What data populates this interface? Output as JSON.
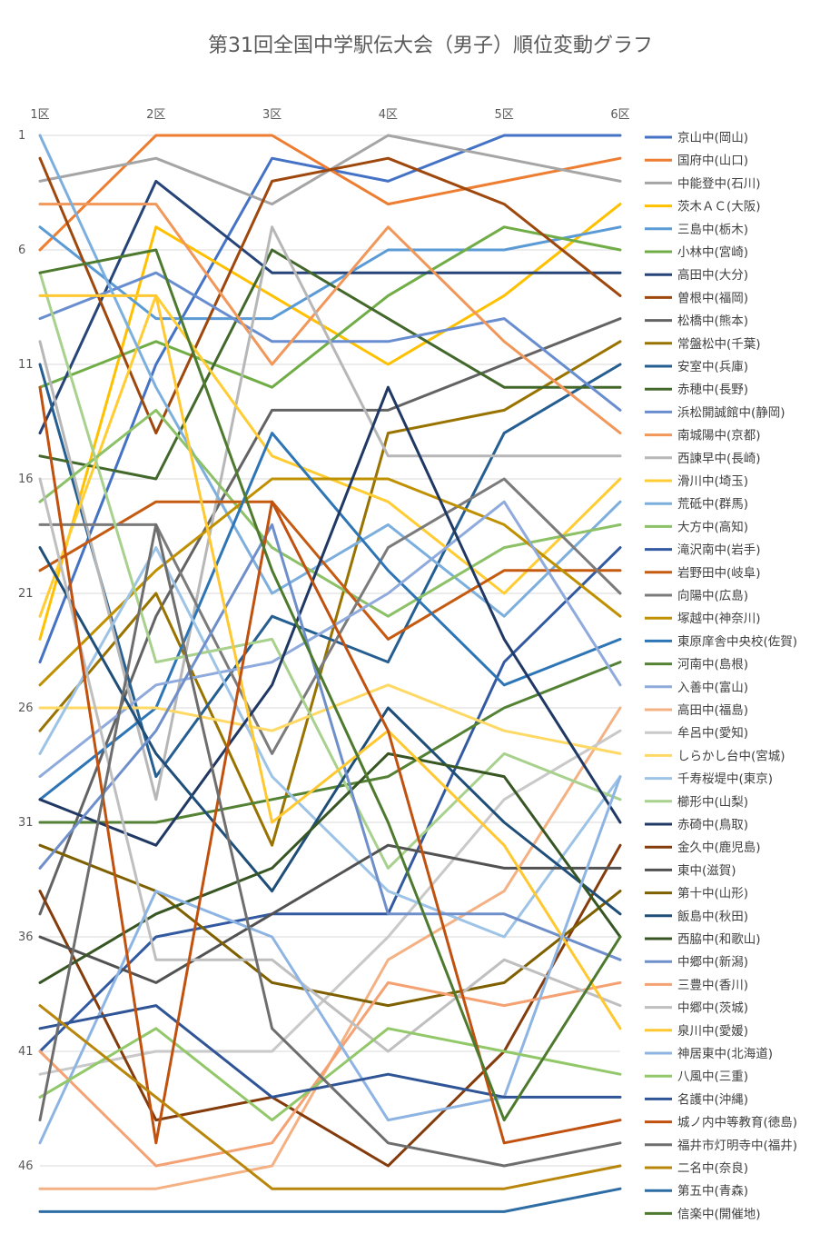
{
  "chart_data": {
    "type": "line",
    "title": "第31回全国中学駅伝大会（男子）順位変動グラフ",
    "x": [
      "1区",
      "2区",
      "3区",
      "4区",
      "5区",
      "6区"
    ],
    "y_ticks": [
      1,
      6,
      11,
      16,
      21,
      26,
      31,
      36,
      41,
      46
    ],
    "ylim": [
      1,
      48
    ],
    "y_reversed": true,
    "grid": true,
    "legend_position": "right",
    "series": [
      {
        "name": "京山中(岡山)",
        "color": "#4472C4",
        "values": [
          24,
          11,
          2,
          3,
          1,
          1
        ]
      },
      {
        "name": "国府中(山口)",
        "color": "#ED7D31",
        "values": [
          6,
          1,
          1,
          4,
          3,
          2
        ]
      },
      {
        "name": "中能登中(石川)",
        "color": "#A5A5A5",
        "values": [
          3,
          2,
          4,
          1,
          2,
          3
        ]
      },
      {
        "name": "茨木ＡＣ(大阪)",
        "color": "#FFC000",
        "values": [
          23,
          5,
          8,
          11,
          8,
          4
        ]
      },
      {
        "name": "三島中(栃木)",
        "color": "#5B9BD5",
        "values": [
          5,
          9,
          9,
          6,
          6,
          5
        ]
      },
      {
        "name": "小林中(宮崎)",
        "color": "#70AD47",
        "values": [
          12,
          10,
          12,
          8,
          5,
          6
        ]
      },
      {
        "name": "高田中(大分)",
        "color": "#264478",
        "values": [
          14,
          3,
          7,
          7,
          7,
          7
        ]
      },
      {
        "name": "曽根中(福岡)",
        "color": "#9E480E",
        "values": [
          2,
          14,
          3,
          2,
          4,
          8
        ]
      },
      {
        "name": "松橋中(熊本)",
        "color": "#636363",
        "values": [
          35,
          22,
          13,
          13,
          11,
          9
        ]
      },
      {
        "name": "常盤松中(千葉)",
        "color": "#997300",
        "values": [
          27,
          21,
          32,
          14,
          13,
          10
        ]
      },
      {
        "name": "安室中(兵庫)",
        "color": "#255E91",
        "values": [
          11,
          29,
          22,
          24,
          14,
          11
        ]
      },
      {
        "name": "赤穂中(長野)",
        "color": "#43682B",
        "values": [
          15,
          16,
          6,
          9,
          12,
          12
        ]
      },
      {
        "name": "浜松開誠館中(静岡)",
        "color": "#698ED0",
        "values": [
          9,
          7,
          10,
          10,
          9,
          13
        ]
      },
      {
        "name": "南城陽中(京都)",
        "color": "#F1975A",
        "values": [
          4,
          4,
          11,
          5,
          10,
          14
        ]
      },
      {
        "name": "西諫早中(長崎)",
        "color": "#B7B7B7",
        "values": [
          10,
          30,
          5,
          15,
          15,
          15
        ]
      },
      {
        "name": "滑川中(埼玉)",
        "color": "#FFCD33",
        "values": [
          22,
          8,
          15,
          17,
          21,
          16
        ]
      },
      {
        "name": "荒砥中(群馬)",
        "color": "#7CAFDD",
        "values": [
          1,
          12,
          21,
          18,
          22,
          17
        ]
      },
      {
        "name": "大方中(高知)",
        "color": "#8CC168",
        "values": [
          17,
          13,
          19,
          22,
          19,
          18
        ]
      },
      {
        "name": "滝沢南中(岩手)",
        "color": "#335AA1",
        "values": [
          41,
          36,
          35,
          35,
          24,
          19
        ]
      },
      {
        "name": "岩野田中(岐阜)",
        "color": "#C55A11",
        "values": [
          20,
          17,
          17,
          23,
          20,
          20
        ]
      },
      {
        "name": "向陽中(広島)",
        "color": "#7B7B7B",
        "values": [
          18,
          18,
          28,
          19,
          16,
          21
        ]
      },
      {
        "name": "塚越中(神奈川)",
        "color": "#BF9000",
        "values": [
          25,
          20,
          16,
          16,
          18,
          22
        ]
      },
      {
        "name": "東原庠舎中央校(佐賀)",
        "color": "#2E75B6",
        "values": [
          30,
          26,
          14,
          20,
          25,
          23
        ]
      },
      {
        "name": "河南中(島根)",
        "color": "#548235",
        "values": [
          31,
          31,
          30,
          29,
          26,
          24
        ]
      },
      {
        "name": "入善中(富山)",
        "color": "#8FAADC",
        "values": [
          29,
          25,
          24,
          21,
          17,
          25
        ]
      },
      {
        "name": "高田中(福島)",
        "color": "#F4B183",
        "values": [
          47,
          47,
          46,
          37,
          34,
          26
        ]
      },
      {
        "name": "牟呂中(愛知)",
        "color": "#C9C9C9",
        "values": [
          42,
          41,
          41,
          36,
          30,
          27
        ]
      },
      {
        "name": "しらかし台中(宮城)",
        "color": "#FFD966",
        "values": [
          26,
          26,
          27,
          25,
          27,
          28
        ]
      },
      {
        "name": "千寿桜堤中(東京)",
        "color": "#9DC3E6",
        "values": [
          28,
          19,
          29,
          34,
          36,
          29
        ]
      },
      {
        "name": "櫛形中(山梨)",
        "color": "#A9D18E",
        "values": [
          7,
          24,
          23,
          33,
          28,
          30
        ]
      },
      {
        "name": "赤碕中(鳥取)",
        "color": "#203864",
        "values": [
          30,
          32,
          25,
          12,
          23,
          31
        ]
      },
      {
        "name": "金久中(鹿児島)",
        "color": "#843C0C",
        "values": [
          34,
          44,
          43,
          46,
          41,
          32
        ]
      },
      {
        "name": "東中(滋賀)",
        "color": "#525252",
        "values": [
          36,
          38,
          35,
          32,
          33,
          33
        ]
      },
      {
        "name": "第十中(山形)",
        "color": "#7F6000",
        "values": [
          32,
          34,
          38,
          39,
          38,
          34
        ]
      },
      {
        "name": "飯島中(秋田)",
        "color": "#1F4E79",
        "values": [
          19,
          28,
          34,
          26,
          31,
          35
        ]
      },
      {
        "name": "西脇中(和歌山)",
        "color": "#375623",
        "values": [
          38,
          35,
          33,
          28,
          29,
          36
        ]
      },
      {
        "name": "中郷中(新潟)",
        "color": "#6F8FCB",
        "values": [
          33,
          27,
          18,
          35,
          35,
          37
        ]
      },
      {
        "name": "三豊中(香川)",
        "color": "#F4A273",
        "values": [
          41,
          46,
          45,
          38,
          39,
          38
        ]
      },
      {
        "name": "中郷中(茨城)",
        "color": "#BFBFBF",
        "values": [
          16,
          37,
          37,
          41,
          37,
          39
        ]
      },
      {
        "name": "泉川中(愛媛)",
        "color": "#FFC830",
        "values": [
          8,
          8,
          31,
          27,
          32,
          40
        ]
      },
      {
        "name": "神居東中(北海道)",
        "color": "#8DB4E2",
        "values": [
          45,
          34,
          36,
          44,
          43,
          29
        ]
      },
      {
        "name": "八風中(三重)",
        "color": "#92C86A",
        "values": [
          43,
          40,
          44,
          40,
          41,
          42
        ]
      },
      {
        "name": "名護中(沖縄)",
        "color": "#2F5597",
        "values": [
          40,
          39,
          43,
          42,
          43,
          43
        ]
      },
      {
        "name": "城ノ内中等教育(徳島)",
        "color": "#C0510F",
        "values": [
          12,
          45,
          17,
          27,
          45,
          44
        ]
      },
      {
        "name": "福井市灯明寺中(福井)",
        "color": "#6E6E6E",
        "values": [
          44,
          18,
          40,
          45,
          46,
          45
        ]
      },
      {
        "name": "二名中(奈良)",
        "color": "#B8860B",
        "values": [
          39,
          43,
          47,
          47,
          47,
          46
        ]
      },
      {
        "name": "第五中(青森)",
        "color": "#2E6DA4",
        "values": [
          48,
          48,
          48,
          48,
          48,
          47
        ]
      },
      {
        "name": "信楽中(開催地)",
        "color": "#4D7A2E",
        "values": [
          7,
          6,
          20,
          31,
          44,
          36
        ]
      }
    ]
  }
}
